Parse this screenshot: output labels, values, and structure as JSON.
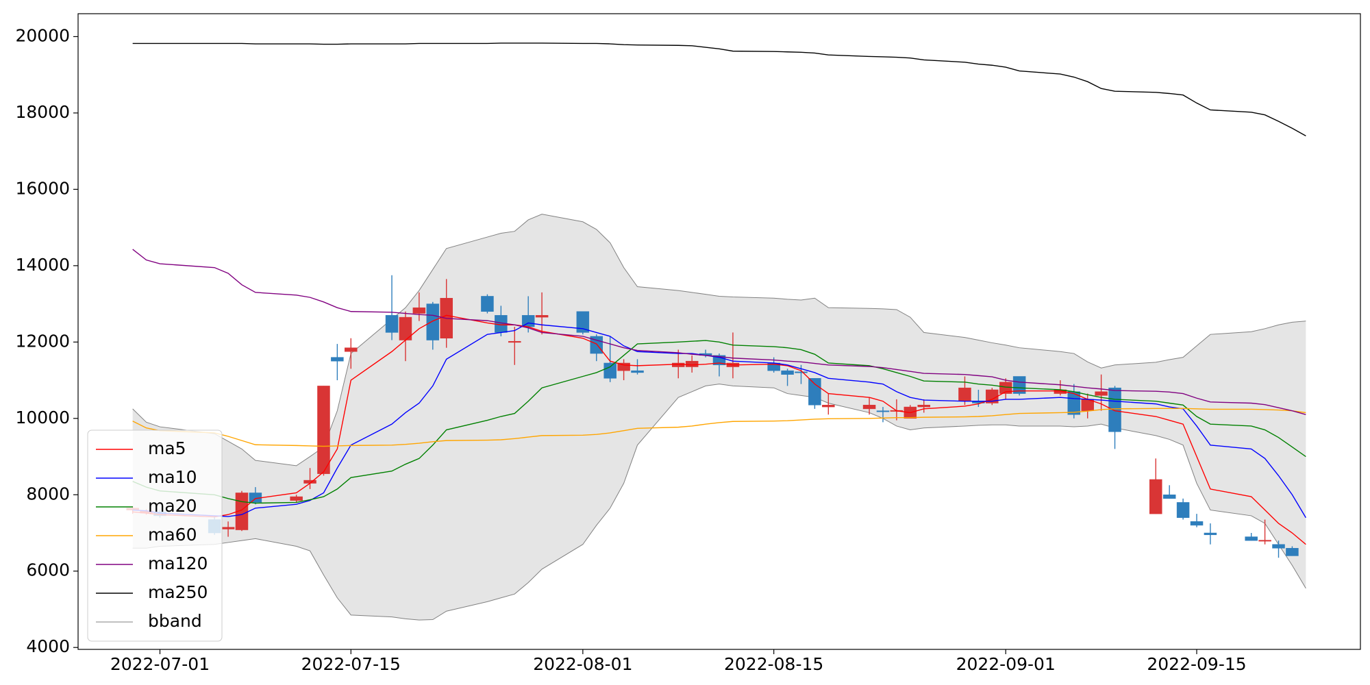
{
  "chart_data": {
    "type": "candlestick",
    "x": [
      "2022-06-29",
      "2022-06-30",
      "2022-07-01",
      "2022-07-05",
      "2022-07-06",
      "2022-07-07",
      "2022-07-08",
      "2022-07-11",
      "2022-07-12",
      "2022-07-13",
      "2022-07-14",
      "2022-07-15",
      "2022-07-18",
      "2022-07-19",
      "2022-07-20",
      "2022-07-21",
      "2022-07-22",
      "2022-07-25",
      "2022-07-26",
      "2022-07-27",
      "2022-07-28",
      "2022-07-29",
      "2022-08-01",
      "2022-08-02",
      "2022-08-03",
      "2022-08-04",
      "2022-08-05",
      "2022-08-08",
      "2022-08-09",
      "2022-08-10",
      "2022-08-11",
      "2022-08-12",
      "2022-08-15",
      "2022-08-16",
      "2022-08-17",
      "2022-08-18",
      "2022-08-19",
      "2022-08-22",
      "2022-08-23",
      "2022-08-24",
      "2022-08-25",
      "2022-08-26",
      "2022-08-29",
      "2022-08-30",
      "2022-08-31",
      "2022-09-01",
      "2022-09-02",
      "2022-09-05",
      "2022-09-06",
      "2022-09-07",
      "2022-09-08",
      "2022-09-09",
      "2022-09-12",
      "2022-09-13",
      "2022-09-14",
      "2022-09-15",
      "2022-09-16",
      "2022-09-19",
      "2022-09-20",
      "2022-09-21",
      "2022-09-22",
      "2022-09-23"
    ],
    "candles": {
      "up_color": "#d93535",
      "down_color": "#2e7ebc",
      "open": [
        7600,
        7520,
        7550,
        7350,
        7100,
        7080,
        8050,
        7850,
        8300,
        8550,
        11600,
        11750,
        12700,
        12050,
        12750,
        13000,
        12100,
        13200,
        12700,
        11990,
        12700,
        12650,
        12800,
        12150,
        11450,
        11250,
        11250,
        11350,
        11350,
        11700,
        11650,
        11350,
        11450,
        11250,
        11220,
        11050,
        10300,
        10250,
        10200,
        10190,
        10000,
        10300,
        10450,
        10450,
        10400,
        10650,
        11100,
        10650,
        10700,
        10200,
        10600,
        10800,
        7500,
        8000,
        7800,
        7300,
        7000,
        6900,
        6790,
        6700,
        6600,
        null
      ],
      "high": [
        7700,
        7620,
        7600,
        7450,
        7300,
        8100,
        8200,
        8000,
        8700,
        10850,
        11950,
        12100,
        13750,
        12800,
        13300,
        13050,
        13650,
        13250,
        12950,
        12400,
        13200,
        13300,
        12800,
        12200,
        12150,
        11550,
        11550,
        11800,
        11650,
        11800,
        11700,
        12250,
        11600,
        11300,
        11400,
        11050,
        10650,
        10550,
        10300,
        10500,
        10350,
        10500,
        11100,
        10750,
        10800,
        11050,
        11100,
        11000,
        10900,
        10650,
        11150,
        10850,
        8950,
        8250,
        7900,
        7500,
        7250,
        7000,
        7350,
        6800,
        6650,
        null
      ],
      "low": [
        7500,
        7480,
        7400,
        6950,
        6900,
        7050,
        7750,
        7800,
        8150,
        8500,
        11000,
        11300,
        12050,
        11500,
        12550,
        11800,
        11850,
        12750,
        12150,
        11400,
        12250,
        12200,
        12200,
        11500,
        10950,
        11000,
        11150,
        11050,
        11200,
        11600,
        11100,
        11050,
        11200,
        10850,
        10900,
        10250,
        10100,
        10100,
        9900,
        9950,
        10000,
        10150,
        10350,
        10300,
        10350,
        10500,
        10600,
        10600,
        10000,
        10000,
        10200,
        9200,
        7500,
        7900,
        7350,
        7150,
        6700,
        6800,
        6700,
        6350,
        6400,
        null
      ],
      "close": [
        7650,
        7580,
        7450,
        7000,
        7150,
        8050,
        7800,
        7950,
        8380,
        10850,
        11500,
        11850,
        12250,
        12650,
        12900,
        12050,
        13150,
        12800,
        12250,
        12020,
        12400,
        12700,
        12250,
        11700,
        11050,
        11450,
        11200,
        11450,
        11500,
        11650,
        11400,
        11450,
        11250,
        11150,
        11200,
        10350,
        10350,
        10350,
        10180,
        10210,
        10300,
        10350,
        10800,
        10400,
        10750,
        10950,
        10650,
        10750,
        10100,
        10500,
        10700,
        9650,
        8400,
        7900,
        7400,
        7200,
        6950,
        6800,
        6810,
        6600,
        6400,
        null
      ]
    },
    "series": [
      {
        "name": "ma5",
        "color": "#ff0000",
        "values": [
          7550,
          7520,
          7480,
          7420,
          7480,
          7600,
          7900,
          8050,
          8300,
          8600,
          9200,
          11000,
          11750,
          12050,
          12350,
          12550,
          12700,
          12500,
          12450,
          12450,
          12400,
          12280,
          12100,
          11950,
          11500,
          11400,
          11380,
          11420,
          11400,
          11420,
          11450,
          11400,
          11420,
          11380,
          11250,
          10900,
          10650,
          10550,
          10450,
          10200,
          10150,
          10250,
          10320,
          10380,
          10500,
          10700,
          10720,
          10720,
          10650,
          10500,
          10380,
          10200,
          10050,
          9950,
          9850,
          9000,
          8150,
          7950,
          7600,
          7250,
          7000,
          6700
        ]
      },
      {
        "name": "ma10",
        "color": "#0000ff",
        "values": [
          7600,
          7580,
          7520,
          7450,
          7430,
          7480,
          7650,
          7750,
          7850,
          8050,
          8700,
          9300,
          9850,
          10150,
          10400,
          10850,
          11550,
          12200,
          12250,
          12300,
          12500,
          12450,
          12350,
          12250,
          12150,
          11900,
          11750,
          11700,
          11700,
          11650,
          11600,
          11500,
          11450,
          11400,
          11300,
          11200,
          11050,
          10950,
          10900,
          10700,
          10550,
          10480,
          10450,
          10450,
          10450,
          10500,
          10500,
          10550,
          10520,
          10500,
          10480,
          10450,
          10380,
          10300,
          10250,
          9800,
          9300,
          9200,
          8950,
          8500,
          8000,
          7400
        ]
      },
      {
        "name": "ma20",
        "color": "#008000",
        "values": [
          8350,
          8200,
          8100,
          8000,
          7900,
          7820,
          7780,
          7800,
          7870,
          7950,
          8150,
          8450,
          8620,
          8800,
          8950,
          9300,
          9700,
          9950,
          10050,
          10130,
          10450,
          10800,
          11100,
          11200,
          11350,
          11650,
          11950,
          12000,
          12020,
          12040,
          12000,
          11920,
          11880,
          11850,
          11800,
          11680,
          11450,
          11380,
          11300,
          11200,
          11100,
          10980,
          10950,
          10900,
          10870,
          10820,
          10800,
          10750,
          10700,
          10620,
          10550,
          10500,
          10450,
          10400,
          10350,
          10050,
          9850,
          9800,
          9700,
          9500,
          9250,
          9000
        ]
      },
      {
        "name": "ma60",
        "color": "#ffa500",
        "values": [
          9930,
          9750,
          9680,
          9620,
          9530,
          9420,
          9310,
          9290,
          9280,
          9270,
          9280,
          9290,
          9300,
          9320,
          9350,
          9390,
          9420,
          9430,
          9440,
          9470,
          9510,
          9550,
          9560,
          9580,
          9620,
          9680,
          9740,
          9770,
          9800,
          9850,
          9890,
          9920,
          9930,
          9940,
          9960,
          9980,
          9990,
          10000,
          10010,
          10020,
          10020,
          10030,
          10040,
          10050,
          10070,
          10100,
          10130,
          10150,
          10160,
          10190,
          10230,
          10250,
          10260,
          10260,
          10260,
          10250,
          10240,
          10240,
          10230,
          10220,
          10200,
          10150
        ]
      },
      {
        "name": "ma120",
        "color": "#800080",
        "values": [
          14430,
          14150,
          14050,
          13950,
          13800,
          13500,
          13300,
          13230,
          13170,
          13050,
          12900,
          12800,
          12780,
          12750,
          12720,
          12700,
          12620,
          12560,
          12500,
          12450,
          12370,
          12250,
          12150,
          12050,
          11950,
          11850,
          11780,
          11720,
          11680,
          11650,
          11620,
          11580,
          11530,
          11500,
          11480,
          11440,
          11400,
          11360,
          11330,
          11280,
          11230,
          11180,
          11150,
          11120,
          11090,
          11000,
          10950,
          10880,
          10840,
          10800,
          10770,
          10730,
          10710,
          10690,
          10650,
          10530,
          10430,
          10400,
          10360,
          10280,
          10200,
          10100
        ]
      },
      {
        "name": "ma250",
        "color": "#000000",
        "values": [
          19820,
          19820,
          19820,
          19820,
          19820,
          19820,
          19810,
          19810,
          19810,
          19800,
          19800,
          19810,
          19810,
          19810,
          19820,
          19820,
          19820,
          19820,
          19830,
          19830,
          19830,
          19830,
          19820,
          19820,
          19810,
          19790,
          19780,
          19770,
          19760,
          19720,
          19680,
          19620,
          19610,
          19600,
          19590,
          19570,
          19520,
          19480,
          19470,
          19460,
          19440,
          19390,
          19330,
          19280,
          19250,
          19200,
          19100,
          19020,
          18940,
          18820,
          18640,
          18570,
          18540,
          18510,
          18470,
          18260,
          18080,
          18020,
          17950,
          17780,
          17600,
          17400
        ]
      }
    ],
    "bband": {
      "name": "bband",
      "color": "#808080",
      "fill": "#e5e5e5",
      "upper": [
        10250,
        9900,
        9780,
        9600,
        9400,
        9200,
        8900,
        8760,
        9000,
        9250,
        10200,
        11700,
        12600,
        12900,
        13350,
        13900,
        14450,
        14750,
        14850,
        14900,
        15200,
        15350,
        15150,
        14950,
        14600,
        13950,
        13450,
        13350,
        13300,
        13250,
        13200,
        13180,
        13150,
        13120,
        13100,
        13150,
        12900,
        12880,
        12870,
        12850,
        12650,
        12250,
        12120,
        12050,
        11980,
        11920,
        11850,
        11750,
        11700,
        11480,
        11320,
        11400,
        11470,
        11540,
        11600,
        11900,
        12200,
        12270,
        12350,
        12450,
        12520,
        12550
      ],
      "lower": [
        6600,
        6600,
        6650,
        6700,
        6750,
        6800,
        6850,
        6650,
        6530,
        5900,
        5300,
        4850,
        4800,
        4750,
        4720,
        4730,
        4950,
        5200,
        5300,
        5400,
        5700,
        6050,
        6700,
        7200,
        7650,
        8300,
        9300,
        10550,
        10700,
        10850,
        10900,
        10850,
        10800,
        10650,
        10600,
        10550,
        10400,
        10150,
        10000,
        9800,
        9700,
        9750,
        9800,
        9820,
        9830,
        9830,
        9800,
        9800,
        9780,
        9800,
        9850,
        9750,
        9550,
        9450,
        9300,
        8300,
        7600,
        7450,
        7250,
        6700,
        6150,
        5550
      ]
    },
    "xlim": [
      "2022-06-25",
      "2022-09-27"
    ],
    "xticks": [
      "2022-07-01",
      "2022-07-15",
      "2022-08-01",
      "2022-08-15",
      "2022-09-01",
      "2022-09-15"
    ],
    "ylim": [
      3950,
      20600
    ],
    "yticks": [
      4000,
      6000,
      8000,
      10000,
      12000,
      14000,
      16000,
      18000,
      20000
    ],
    "grid": false,
    "legend": "lower left"
  }
}
